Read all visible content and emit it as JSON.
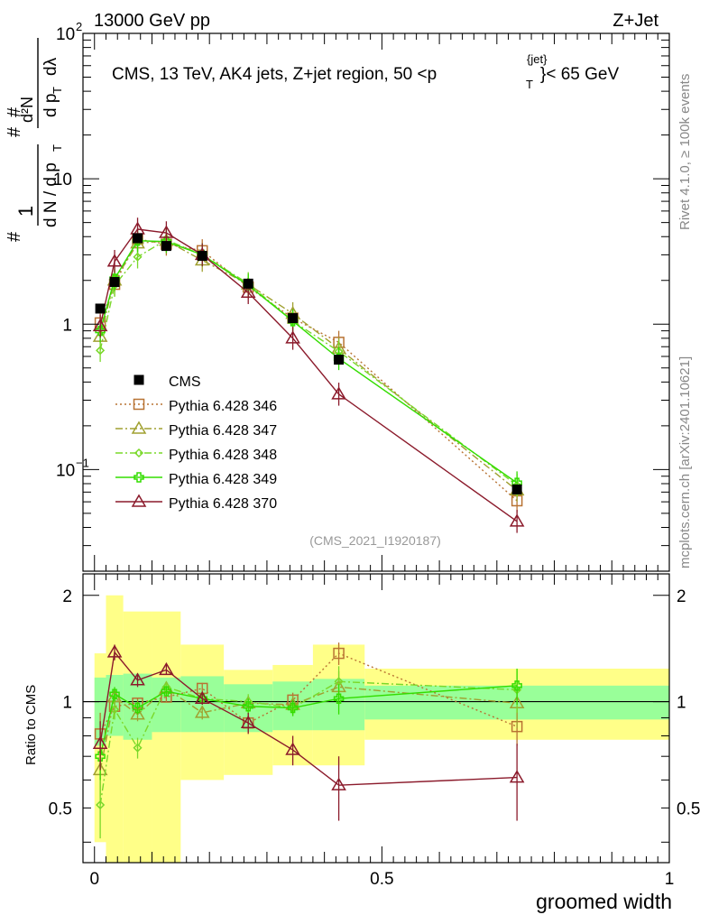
{
  "header": {
    "left": "13000 GeV pp",
    "right": "Z+Jet"
  },
  "side_labels": {
    "rivet": "Rivet 4.1.0, ≥ 100k events",
    "mcplots": "mcplots.cern.ch [arXiv:2401.10621]"
  },
  "chart_data": {
    "type": "line",
    "title": "CMS, 13 TeV, AK4 jets, Z+jet region, 50 <p_T^{jet}< 65 GeV",
    "title_parts": {
      "main": "CMS, 13 TeV, AK4 jets, Z+jet region, 50 <p",
      "sup": "{jet}",
      "sub": "T",
      "end": "}< 65 GeV"
    },
    "analysis_tag": "(CMS_2021_I1920187)",
    "ylabel_text": "#   1   # d²N / d N / d p_T   # d p_T d λ",
    "ylabel_parts": {
      "h1": "#",
      "one": "1",
      "den": "d N / d p",
      "denT": "T",
      "h2": "#",
      "num": "d²N",
      "h3": "#",
      "den2": "d p",
      "den2T": "T",
      "dl": "dλ"
    },
    "xlabel": "groomed width",
    "ratio_ylabel": "Ratio to CMS",
    "ylim": [
      0.02,
      100
    ],
    "ratio_ylim": [
      0.35,
      2.3
    ],
    "xlim": [
      -0.02,
      1.0
    ],
    "x_ticks": [
      {
        "v": 0,
        "label": "0"
      },
      {
        "v": 0.5,
        "label": "0.5"
      },
      {
        "v": 1,
        "label": "1"
      }
    ],
    "y_ticks": [
      {
        "v": 1,
        "label": "1",
        "sup": ""
      },
      {
        "v": 10,
        "label": "10",
        "sup": ""
      },
      {
        "v": 100,
        "label": "10",
        "sup": "2"
      },
      {
        "v": 0.1,
        "label": "10",
        "sup": "−1"
      }
    ],
    "ratio_ticks": [
      {
        "v": 0.5,
        "label": "0.5"
      },
      {
        "v": 1,
        "label": "1"
      },
      {
        "v": 2,
        "label": "2"
      }
    ],
    "bins": [
      {
        "lo": 0.0,
        "hi": 0.02,
        "x": 0.01
      },
      {
        "lo": 0.02,
        "hi": 0.05,
        "x": 0.035
      },
      {
        "lo": 0.05,
        "hi": 0.1,
        "x": 0.075
      },
      {
        "lo": 0.1,
        "hi": 0.15,
        "x": 0.125
      },
      {
        "lo": 0.15,
        "hi": 0.225,
        "x": 0.1875
      },
      {
        "lo": 0.225,
        "hi": 0.31,
        "x": 0.2675
      },
      {
        "lo": 0.31,
        "hi": 0.38,
        "x": 0.345
      },
      {
        "lo": 0.38,
        "hi": 0.47,
        "x": 0.425
      },
      {
        "lo": 0.47,
        "hi": 1.0,
        "x": 0.735
      }
    ],
    "data": {
      "name": "CMS",
      "values": [
        1.28,
        1.95,
        3.9,
        3.45,
        2.95,
        1.9,
        1.1,
        0.57,
        0.073
      ],
      "band_inner": [
        [
          0.75,
          1.17
        ],
        [
          0.8,
          1.19
        ],
        [
          0.78,
          1.2
        ],
        [
          0.82,
          1.17
        ],
        [
          0.82,
          1.18
        ],
        [
          0.82,
          1.12
        ],
        [
          0.83,
          1.14
        ],
        [
          0.83,
          1.16
        ],
        [
          0.89,
          1.11
        ]
      ],
      "band_outer": [
        [
          0.4,
          1.37
        ],
        [
          0.3,
          2.0
        ],
        [
          0.3,
          1.8
        ],
        [
          0.3,
          1.8
        ],
        [
          0.6,
          1.45
        ],
        [
          0.62,
          1.23
        ],
        [
          0.66,
          1.27
        ],
        [
          0.66,
          1.45
        ],
        [
          0.78,
          1.24
        ]
      ]
    },
    "series": [
      {
        "name": "Pythia 6.428 346",
        "color": "#B87333",
        "marker": "square",
        "dash": "2,3",
        "values": [
          1.02,
          1.88,
          3.85,
          3.55,
          3.2,
          1.8,
          1.1,
          0.75,
          0.061
        ],
        "ratio": [
          0.81,
          0.97,
          0.99,
          1.03,
          1.09,
          0.87,
          1.01,
          1.37,
          0.85
        ],
        "ratio_err": [
          0.12,
          0.05,
          0.03,
          0.03,
          0.04,
          0.05,
          0.05,
          0.1,
          0.1
        ]
      },
      {
        "name": "Pythia 6.428 347",
        "color": "#A0A030",
        "marker": "triangle",
        "dash": "8,3,2,3",
        "values": [
          0.82,
          2.0,
          3.6,
          3.75,
          2.75,
          1.88,
          1.18,
          0.68,
          0.072
        ],
        "ratio": [
          0.64,
          1.03,
          0.92,
          1.09,
          0.93,
          0.99,
          0.98,
          1.1,
          0.99
        ],
        "ratio_err": [
          0.1,
          0.05,
          0.04,
          0.03,
          0.04,
          0.05,
          0.06,
          0.12,
          0.15
        ]
      },
      {
        "name": "Pythia 6.428 348",
        "color": "#7AD82A",
        "marker": "diamond",
        "dash": "8,3,2,3",
        "values": [
          0.66,
          1.85,
          2.9,
          3.8,
          3.0,
          1.9,
          1.05,
          0.65,
          0.078
        ],
        "ratio": [
          0.51,
          0.95,
          0.74,
          1.1,
          1.02,
          1.0,
          0.96,
          1.14,
          1.08
        ],
        "ratio_err": [
          0.1,
          0.06,
          0.05,
          0.04,
          0.04,
          0.05,
          0.05,
          0.12,
          0.15
        ]
      },
      {
        "name": "Pythia 6.428 349",
        "color": "#33DD00",
        "marker": "cross",
        "dash": "",
        "values": [
          0.9,
          2.05,
          3.75,
          3.7,
          3.0,
          1.85,
          1.05,
          0.58,
          0.081
        ],
        "ratio": [
          0.7,
          1.05,
          0.96,
          1.07,
          1.02,
          0.97,
          0.96,
          1.02,
          1.11
        ],
        "ratio_err": [
          0.1,
          0.05,
          0.04,
          0.03,
          0.04,
          0.05,
          0.05,
          0.1,
          0.13
        ]
      },
      {
        "name": "Pythia 6.428 370",
        "color": "#8B1A2B",
        "marker": "triangle",
        "dash": "",
        "values": [
          0.97,
          2.7,
          4.5,
          4.25,
          3.0,
          1.65,
          0.8,
          0.33,
          0.044
        ],
        "ratio": [
          0.76,
          1.38,
          1.15,
          1.23,
          1.02,
          0.87,
          0.73,
          0.58,
          0.61
        ],
        "ratio_err": [
          0.12,
          0.07,
          0.05,
          0.04,
          0.04,
          0.06,
          0.07,
          0.12,
          0.15
        ]
      }
    ]
  }
}
